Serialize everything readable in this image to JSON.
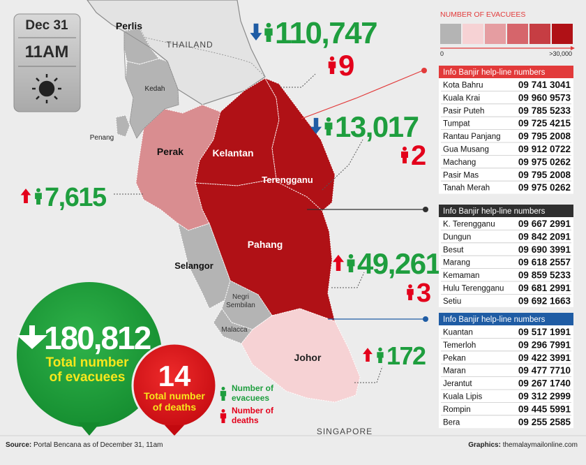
{
  "date_box": {
    "date": "Dec 31",
    "time": "11AM"
  },
  "legend": {
    "title": "NUMBER OF EVACUEES",
    "min_label": "0",
    "max_label": ">30,000",
    "colors": [
      "#b4b4b4",
      "#f6d2d4",
      "#e59da1",
      "#d6656b",
      "#c63d43",
      "#b01116"
    ]
  },
  "map_labels": {
    "countries": [
      "THAILAND",
      "SINGAPORE"
    ],
    "states": [
      {
        "lines": [
          "Perlis"
        ],
        "color": "#b4b4b4"
      },
      {
        "lines": [
          "Kedah"
        ],
        "color": "#b4b4b4"
      },
      {
        "lines": [
          "Penang"
        ],
        "color": "#b4b4b4"
      },
      {
        "lines": [
          "Perak"
        ],
        "color": "#d98d90"
      },
      {
        "lines": [
          "Kelantan"
        ],
        "color": "#b01116"
      },
      {
        "lines": [
          "Terengganu"
        ],
        "color": "#b01116"
      },
      {
        "lines": [
          "Pahang"
        ],
        "color": "#b01116"
      },
      {
        "lines": [
          "Selangor"
        ],
        "color": "#b4b4b4"
      },
      {
        "lines": [
          "Negri",
          "Sembilan"
        ],
        "color": "#b4b4b4"
      },
      {
        "lines": [
          "Malacca"
        ],
        "color": "#b4b4b4"
      },
      {
        "lines": [
          "Johor"
        ],
        "color": "#f6d2d4"
      }
    ]
  },
  "callouts": [
    {
      "evacuees": "110,747",
      "trend": "down",
      "deaths": "9"
    },
    {
      "evacuees": "13,017",
      "trend": "down",
      "deaths": "2"
    },
    {
      "evacuees": "7,615",
      "trend": "up"
    },
    {
      "evacuees": "49,261",
      "trend": "up",
      "deaths": "3"
    },
    {
      "evacuees": "172",
      "trend": "up"
    }
  ],
  "totals": {
    "evacuees": "180,812",
    "evacuees_label": [
      "Total number",
      "of evacuees"
    ],
    "deaths": "14",
    "deaths_label": [
      "Total number",
      "of deaths"
    ]
  },
  "key": {
    "evacuees": [
      "Number of",
      "evacuees"
    ],
    "deaths": [
      "Number of",
      "deaths"
    ]
  },
  "helplines": [
    {
      "title": "Info Banjir help-line numbers",
      "color": "#e23a3a",
      "rows": [
        {
          "place": "Kota Bahru",
          "phone": "09 741 3041"
        },
        {
          "place": "Kuala Krai",
          "phone": "09 960 9573"
        },
        {
          "place": "Pasir Puteh",
          "phone": "09 785 5233"
        },
        {
          "place": "Tumpat",
          "phone": "09 725 4215"
        },
        {
          "place": "Rantau Panjang",
          "phone": "09 795 2008"
        },
        {
          "place": "Gua Musang",
          "phone": "09 912 0722"
        },
        {
          "place": "Machang",
          "phone": "09 975 0262"
        },
        {
          "place": "Pasir Mas",
          "phone": "09 795 2008"
        },
        {
          "place": "Tanah Merah",
          "phone": "09 975 0262"
        }
      ]
    },
    {
      "title": "Info Banjir help-line numbers",
      "color": "#2f2f2f",
      "rows": [
        {
          "place": "K. Terengganu",
          "phone": "09 667 2991"
        },
        {
          "place": "Dungun",
          "phone": "09 842 2091"
        },
        {
          "place": "Besut",
          "phone": "09 690 3991"
        },
        {
          "place": "Marang",
          "phone": "09 618 2557"
        },
        {
          "place": "Kemaman",
          "phone": "09 859 5233"
        },
        {
          "place": "Hulu Terengganu",
          "phone": "09 681 2991"
        },
        {
          "place": "Setiu",
          "phone": "09 692 1663"
        }
      ]
    },
    {
      "title": "Info Banjir help-line numbers",
      "color": "#1f5ca4",
      "rows": [
        {
          "place": "Kuantan",
          "phone": "09 517 1991"
        },
        {
          "place": "Temerloh",
          "phone": "09 296 7991"
        },
        {
          "place": "Pekan",
          "phone": "09 422 3991"
        },
        {
          "place": "Maran",
          "phone": "09 477 7710"
        },
        {
          "place": "Jerantut",
          "phone": "09 267 1740"
        },
        {
          "place": "Kuala Lipis",
          "phone": "09 312 2999"
        },
        {
          "place": "Rompin",
          "phone": "09 445 5991"
        },
        {
          "place": "Bera",
          "phone": "09 255 2585"
        }
      ]
    }
  ],
  "footer": {
    "source_label": "Source:",
    "source": "Portal Bencana as of December 31, 11am",
    "credit_label": "Graphics:",
    "credit": "themalaymailonline.com"
  }
}
